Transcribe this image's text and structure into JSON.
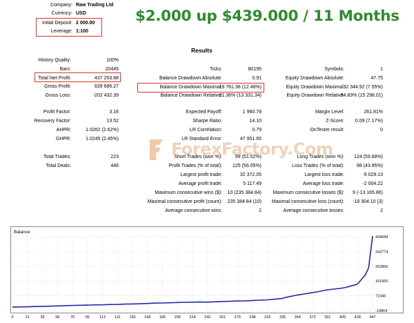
{
  "header": {
    "company_label": "Company:",
    "company_value": "Raw Trading Ltd",
    "currency_label": "Currency:",
    "currency_value": "USD",
    "deposit_label": "Initial Deposit:",
    "deposit_value": "2 000.00",
    "leverage_label": "Leverage:",
    "leverage_value": "1:100"
  },
  "headline": "$2.000 up $439.000 / 11 Months",
  "results_title": "Results",
  "col1": [
    {
      "label": "History Quality:",
      "value": "100%"
    },
    {
      "label": "Bars:",
      "value": "20445"
    },
    {
      "label": "Total Net Profit:",
      "value": "437 253.88"
    },
    {
      "label": "Gross Profit:",
      "value": "639 686.27"
    },
    {
      "label": "Gross Loss:",
      "value": "-202 432.39"
    },
    {
      "label": "Profit Factor:",
      "value": "3.16"
    },
    {
      "label": "Recovery Factor:",
      "value": "13.52"
    },
    {
      "label": "AHPR:",
      "value": "1.0262 (2.62%)"
    },
    {
      "label": "GHPR:",
      "value": "1.0245 (2.45%)"
    },
    {
      "label": "Total Trades:",
      "value": "223"
    },
    {
      "label": "Total Deals:",
      "value": "446"
    }
  ],
  "col2": [
    {
      "label": "Ticks:",
      "value": "80195"
    },
    {
      "label": "Balance Drawdown Absolute:",
      "value": "0.91"
    },
    {
      "label": "Balance Drawdown Maximal:",
      "value": "19 761.36 (12.48%)"
    },
    {
      "label": "Balance Drawdown Relative:",
      "value": "31.36% (13 331.34)"
    },
    {
      "label": "Expected Payoff:",
      "value": "1 960.78"
    },
    {
      "label": "Sharpe Ratio:",
      "value": "14.10"
    },
    {
      "label": "LR Correlation:",
      "value": "0.79"
    },
    {
      "label": "LR Standard Error:",
      "value": "47 951.65"
    },
    {
      "label": "Short Trades (won %):",
      "value": "99 (51.52%)"
    },
    {
      "label": "Profit Trades (% of total):",
      "value": "125 (56.05%)"
    },
    {
      "label": "Largest profit trade:",
      "value": "32 372.05"
    },
    {
      "label": "Average profit trade:",
      "value": "5 117.49"
    },
    {
      "label": "Maximum consecutive wins ($):",
      "value": "10 (235 384.84)"
    },
    {
      "label": "Maximal consecutive profit (count):",
      "value": "235 384.84 (10)"
    },
    {
      "label": "Average consecutive wins:",
      "value": "2"
    }
  ],
  "col3": [
    {
      "label": "Symbols:",
      "value": "1"
    },
    {
      "label": "Equity Drawdown Absolute:",
      "value": "47.75"
    },
    {
      "label": "Equity Drawdown Maximal:",
      "value": "32 344.92 (7.55%)"
    },
    {
      "label": "Equity Drawdown Relative:",
      "value": "34.83% (15 298.01)"
    },
    {
      "label": "Margin Level:",
      "value": "261.81%"
    },
    {
      "label": "Z-Score:",
      "value": "0.09 (7.17%)"
    },
    {
      "label": "OnTester result:",
      "value": "0"
    },
    {
      "label": "Long Trades (won %):",
      "value": "124 (59.68%)"
    },
    {
      "label": "Loss Trades (% of total):",
      "value": "98 (43.95%)"
    },
    {
      "label": "Largest loss trade:",
      "value": "-9 029.13"
    },
    {
      "label": "Average loss trade:",
      "value": "-2 004.22"
    },
    {
      "label": "Maximum consecutive losses ($):",
      "value": "9 (-13 165.86)"
    },
    {
      "label": "Maximal consecutive loss (count):",
      "value": "-18 304.10 (3)"
    },
    {
      "label": "Average consecutive losses:",
      "value": "2"
    }
  ],
  "watermark": "ForexFactory.Com",
  "colors": {
    "headline": "#2e8b2e",
    "highlight_box": "#d9342b",
    "balance_line": "#1f2a9e"
  },
  "chart_data": {
    "type": "line",
    "title": "Balance",
    "x_ticks": [
      "0",
      "21",
      "39",
      "58",
      "76",
      "95",
      "113",
      "131",
      "150",
      "168",
      "186",
      "205",
      "224",
      "242",
      "261",
      "279",
      "298",
      "316",
      "335",
      "354",
      "372",
      "391",
      "409",
      "428",
      "447"
    ],
    "y_ticks": [
      "434684",
      "343774",
      "252865",
      "161955",
      "71046",
      "-19864"
    ],
    "ylim": [
      -19864,
      434684
    ],
    "xlim": [
      0,
      447
    ],
    "series": [
      {
        "x": [
          0,
          10,
          21,
          30,
          39,
          50,
          58,
          70,
          76,
          85,
          95,
          105,
          113,
          120,
          131,
          140,
          150,
          160,
          168,
          175,
          186,
          195,
          205,
          215,
          224,
          232,
          242,
          250,
          261,
          270,
          279,
          288,
          298,
          305,
          316,
          325,
          335,
          340,
          354,
          362,
          372,
          380,
          391,
          398,
          409,
          415,
          420,
          428,
          432,
          438,
          442,
          447
        ],
        "y": [
          2000,
          2500,
          4000,
          5000,
          6000,
          8000,
          9000,
          11000,
          12000,
          13000,
          14000,
          15500,
          16000,
          17500,
          18000,
          20000,
          21000,
          22000,
          24000,
          26000,
          27000,
          28000,
          30000,
          31000,
          32000,
          33000,
          32000,
          34000,
          36000,
          37000,
          39000,
          40000,
          42000,
          44000,
          46000,
          50000,
          55000,
          62000,
          76000,
          82000,
          90000,
          97000,
          108000,
          112000,
          118000,
          124000,
          132000,
          142000,
          165000,
          200000,
          243000,
          439000
        ]
      }
    ]
  }
}
